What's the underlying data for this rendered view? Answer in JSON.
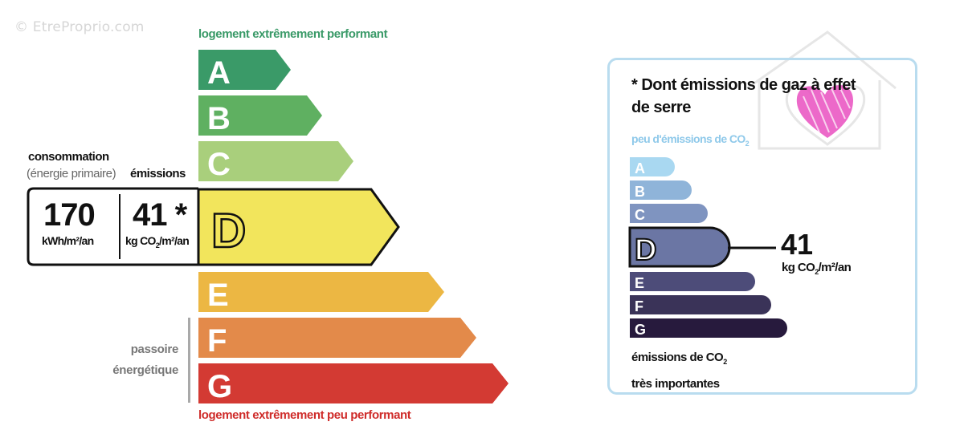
{
  "watermark": "© EtreProprio.com",
  "energy": {
    "top_caption": "logement extrêmement performant",
    "bottom_caption": "logement extrêmement peu performant",
    "classes": [
      {
        "letter": "A",
        "color": "#3a9a68"
      },
      {
        "letter": "B",
        "color": "#5fb061"
      },
      {
        "letter": "C",
        "color": "#a9cf7c"
      },
      {
        "letter": "D",
        "color": "#f2e55c"
      },
      {
        "letter": "E",
        "color": "#ecb743"
      },
      {
        "letter": "F",
        "color": "#e38a4a"
      },
      {
        "letter": "G",
        "color": "#d33a33"
      }
    ],
    "active_class": "D",
    "consommation_label": "consommation",
    "consommation_sublabel": "(énergie primaire)",
    "emissions_label": "émissions",
    "consommation_value": "170",
    "consommation_unit": "kWh/m²/an",
    "emissions_value": "41 *",
    "emissions_unit_prefix": "kg CO",
    "emissions_unit_sub": "2",
    "emissions_unit_suffix": "/m²/an",
    "passoire_line1": "passoire",
    "passoire_line2": "énergétique"
  },
  "ges": {
    "title": "* Dont émissions de gaz à effet de serre",
    "subtitle_prefix": "peu d'émissions de CO",
    "subtitle_sub": "2",
    "classes": [
      {
        "letter": "A",
        "color": "#a9d8f1"
      },
      {
        "letter": "B",
        "color": "#8fb4d9"
      },
      {
        "letter": "C",
        "color": "#7f94c0"
      },
      {
        "letter": "D",
        "color": "#6b76a4"
      },
      {
        "letter": "E",
        "color": "#4d4c79"
      },
      {
        "letter": "F",
        "color": "#3a3358"
      },
      {
        "letter": "G",
        "color": "#271a3d"
      }
    ],
    "active_class": "D",
    "value": "41",
    "unit_prefix": "kg CO",
    "unit_sub": "2",
    "unit_suffix": "/m²/an",
    "footer_line1_prefix": "émissions de CO",
    "footer_line1_sub": "2",
    "footer_line2": "très importantes"
  }
}
